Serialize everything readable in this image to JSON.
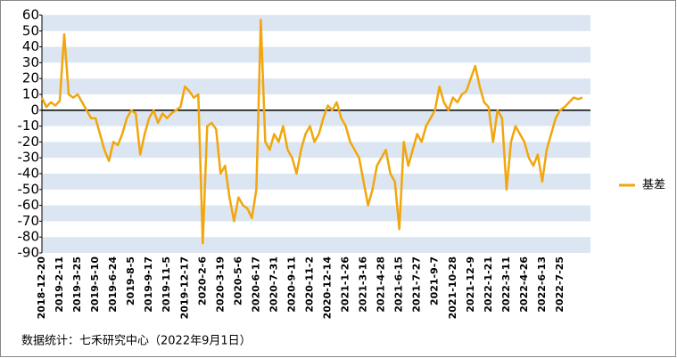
{
  "chart_data": {
    "type": "line",
    "categories": [
      "2018-12-20",
      null,
      null,
      null,
      "2019-2-11",
      null,
      null,
      null,
      "2019-3-25",
      null,
      null,
      null,
      "2019-5-10",
      null,
      null,
      null,
      "2019-6-24",
      null,
      null,
      null,
      "2019-8-5",
      null,
      null,
      null,
      "2019-9-17",
      null,
      null,
      null,
      "2019-11-5",
      null,
      null,
      null,
      "2019-12-17",
      null,
      null,
      null,
      "2020-2-6",
      null,
      null,
      null,
      "2020-3-19",
      null,
      null,
      null,
      "2020-5-6",
      null,
      null,
      null,
      "2020-6-17",
      null,
      null,
      null,
      "2020-7-31",
      null,
      null,
      null,
      "2020-9-11",
      null,
      null,
      null,
      "2020-11-2",
      null,
      null,
      null,
      "2020-12-14",
      null,
      null,
      null,
      "2021-1-26",
      null,
      null,
      null,
      "2021-3-16",
      null,
      null,
      null,
      "2021-4-28",
      null,
      null,
      null,
      "2021-6-15",
      null,
      null,
      null,
      "2021-7-27",
      null,
      null,
      null,
      "2021-9-7",
      null,
      null,
      null,
      "2021-10-28",
      null,
      null,
      null,
      "2021-12-9",
      null,
      null,
      null,
      "2022-1-21",
      null,
      null,
      null,
      "2022-3-11",
      null,
      null,
      null,
      "2022-4-26",
      null,
      null,
      null,
      "2022-6-13",
      null,
      null,
      null,
      "2022-7-25",
      null,
      null,
      null,
      null,
      null
    ],
    "series": [
      {
        "name": "基差",
        "color": "#f2a60c",
        "values": [
          8,
          2,
          5,
          3,
          6,
          48,
          10,
          8,
          10,
          5,
          0,
          -5,
          -5,
          -15,
          -25,
          -32,
          -20,
          -22,
          -15,
          -5,
          0,
          -2,
          -28,
          -15,
          -5,
          0,
          -8,
          -2,
          -5,
          -2,
          0,
          2,
          15,
          12,
          8,
          10,
          -84,
          -10,
          -8,
          -12,
          -40,
          -35,
          -55,
          -70,
          -55,
          -60,
          -62,
          -68,
          -50,
          57,
          -20,
          -25,
          -15,
          -20,
          -10,
          -25,
          -30,
          -40,
          -25,
          -15,
          -10,
          -20,
          -15,
          -5,
          3,
          0,
          5,
          -5,
          -10,
          -20,
          -25,
          -30,
          -45,
          -60,
          -50,
          -35,
          -30,
          -25,
          -40,
          -45,
          -75,
          -20,
          -35,
          -25,
          -15,
          -20,
          -10,
          -5,
          0,
          15,
          5,
          0,
          8,
          5,
          10,
          12,
          20,
          28,
          15,
          5,
          2,
          -20,
          0,
          -5,
          -50,
          -20,
          -10,
          -15,
          -20,
          -30,
          -35,
          -28,
          -45,
          -25,
          -15,
          -5,
          0,
          2,
          5,
          8,
          7,
          8
        ]
      }
    ],
    "ylim": [
      -90,
      60
    ],
    "yticks": [
      60,
      50,
      40,
      30,
      20,
      10,
      0,
      -10,
      -20,
      -30,
      -40,
      -50,
      -60,
      -70,
      -80,
      -90
    ],
    "legend": "right",
    "footer": "数据统计：七禾研究中心（2022年9月1日）"
  }
}
